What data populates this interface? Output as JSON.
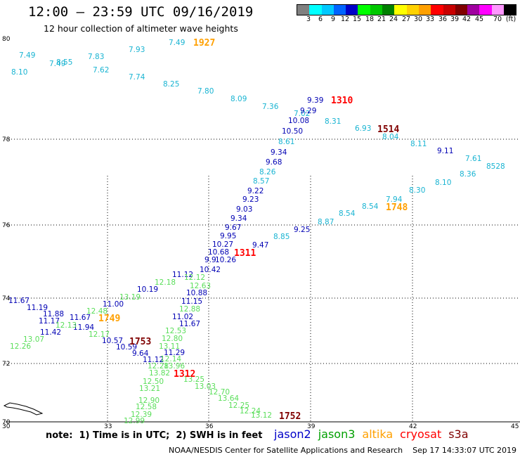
{
  "header": {
    "title": "12:00 – 23:59 UTC 09/16/2019",
    "subtitle": "12 hour collection of altimeter wave heights"
  },
  "legend": {
    "colors": [
      "#808080",
      "#00ffff",
      "#00c8ff",
      "#0064ff",
      "#0000c8",
      "#00ff00",
      "#00c800",
      "#008000",
      "#ffff00",
      "#ffd200",
      "#ffa000",
      "#ff0000",
      "#c80000",
      "#800000",
      "#a000a0",
      "#ff00ff",
      "#ff96ff",
      "#000000"
    ],
    "labels": [
      "3",
      "6",
      "9",
      "12",
      "15",
      "18",
      "21",
      "24",
      "27",
      "30",
      "33",
      "36",
      "39",
      "42",
      "45",
      "70"
    ],
    "unit": "(ft)"
  },
  "axes": {
    "lat_labels": [
      "80",
      "78",
      "76",
      "74",
      "72",
      "70"
    ],
    "lon_labels": [
      "30",
      "33",
      "36",
      "39",
      "42",
      "45"
    ]
  },
  "measurements": [
    {
      "v": "7.49",
      "s": "cyan"
    },
    {
      "v": "8.55",
      "s": "cyan"
    },
    {
      "v": "7.49",
      "s": "cyan"
    },
    {
      "v": "8.10",
      "s": "cyan"
    },
    {
      "v": "7.83",
      "s": "cyan"
    },
    {
      "v": "7.62",
      "s": "cyan"
    },
    {
      "v": "7.93",
      "s": "cyan"
    },
    {
      "v": "7.74",
      "s": "cyan"
    },
    {
      "v": "7.49",
      "s": "cyan"
    },
    {
      "v": "8.25",
      "s": "cyan"
    },
    {
      "v": "7.80",
      "s": "cyan"
    },
    {
      "v": "8.09",
      "s": "cyan"
    },
    {
      "v": "7.36",
      "s": "cyan"
    },
    {
      "v": "7.02",
      "s": "cyan"
    },
    {
      "v": "8.31",
      "s": "cyan"
    },
    {
      "v": "6.93",
      "s": "cyan"
    },
    {
      "v": "8.04",
      "s": "cyan"
    },
    {
      "v": "8.11",
      "s": "cyan"
    },
    {
      "v": "7.61",
      "s": "cyan"
    },
    {
      "v": "8.36",
      "s": "cyan"
    },
    {
      "v": "8.10",
      "s": "cyan"
    },
    {
      "v": "8.30",
      "s": "cyan"
    },
    {
      "v": "7.94",
      "s": "cyan"
    },
    {
      "v": "8.54",
      "s": "cyan"
    },
    {
      "v": "8.54",
      "s": "cyan"
    },
    {
      "v": "8.87",
      "s": "cyan"
    },
    {
      "v": "8.85",
      "s": "cyan"
    },
    {
      "v": "8.57",
      "s": "cyan"
    },
    {
      "v": "8.26",
      "s": "cyan"
    },
    {
      "v": "8.61",
      "s": "cyan"
    },
    {
      "v": "8528",
      "s": "cyan"
    },
    {
      "v": "9.39",
      "s": "blue"
    },
    {
      "v": "9.29",
      "s": "blue"
    },
    {
      "v": "10.08",
      "s": "blue"
    },
    {
      "v": "10.50",
      "s": "blue"
    },
    {
      "v": "9.34",
      "s": "blue"
    },
    {
      "v": "9.68",
      "s": "blue"
    },
    {
      "v": "9.22",
      "s": "blue"
    },
    {
      "v": "9.23",
      "s": "blue"
    },
    {
      "v": "9.03",
      "s": "blue"
    },
    {
      "v": "9.34",
      "s": "blue"
    },
    {
      "v": "9.67",
      "s": "blue"
    },
    {
      "v": "9.95",
      "s": "blue"
    },
    {
      "v": "10.27",
      "s": "blue"
    },
    {
      "v": "10.68",
      "s": "blue"
    },
    {
      "v": "9.9",
      "s": "blue"
    },
    {
      "v": "10.26",
      "s": "blue"
    },
    {
      "v": "9.47",
      "s": "blue"
    },
    {
      "v": "9.25",
      "s": "blue"
    },
    {
      "v": "9.11",
      "s": "blue"
    },
    {
      "v": "10.42",
      "s": "blue"
    },
    {
      "v": "11.12",
      "s": "blue"
    },
    {
      "v": "10.19",
      "s": "blue"
    },
    {
      "v": "10.88",
      "s": "blue"
    },
    {
      "v": "11.15",
      "s": "blue"
    },
    {
      "v": "11.02",
      "s": "blue"
    },
    {
      "v": "11.67",
      "s": "blue"
    },
    {
      "v": "11.67",
      "s": "blue"
    },
    {
      "v": "11.19",
      "s": "blue"
    },
    {
      "v": "11.88",
      "s": "blue"
    },
    {
      "v": "11.17",
      "s": "blue"
    },
    {
      "v": "11.67",
      "s": "blue"
    },
    {
      "v": "11.94",
      "s": "blue"
    },
    {
      "v": "11.42",
      "s": "blue"
    },
    {
      "v": "11.00",
      "s": "blue"
    },
    {
      "v": "10.57",
      "s": "blue"
    },
    {
      "v": "10.59",
      "s": "blue"
    },
    {
      "v": "9.64",
      "s": "blue"
    },
    {
      "v": "11.29",
      "s": "blue"
    },
    {
      "v": "11.12",
      "s": "blue"
    },
    {
      "v": "12.18",
      "s": "green"
    },
    {
      "v": "12.12",
      "s": "green"
    },
    {
      "v": "12.63",
      "s": "green"
    },
    {
      "v": "13.19",
      "s": "green"
    },
    {
      "v": "12.48",
      "s": "green"
    },
    {
      "v": "12.13",
      "s": "green"
    },
    {
      "v": "12.17",
      "s": "green"
    },
    {
      "v": "13.07",
      "s": "green"
    },
    {
      "v": "12.26",
      "s": "green"
    },
    {
      "v": "12.88",
      "s": "green"
    },
    {
      "v": "12.53",
      "s": "green"
    },
    {
      "v": "12.80",
      "s": "green"
    },
    {
      "v": "13.11",
      "s": "green"
    },
    {
      "v": "12.14",
      "s": "green"
    },
    {
      "v": "12.28",
      "s": "green"
    },
    {
      "v": "13.96",
      "s": "green"
    },
    {
      "v": "13.82",
      "s": "green"
    },
    {
      "v": "12.50",
      "s": "green"
    },
    {
      "v": "13.21",
      "s": "green"
    },
    {
      "v": "12.90",
      "s": "green"
    },
    {
      "v": "12.58",
      "s": "green"
    },
    {
      "v": "12.39",
      "s": "green"
    },
    {
      "v": "12.99",
      "s": "green"
    },
    {
      "v": "13.25",
      "s": "green"
    },
    {
      "v": "13.03",
      "s": "green"
    },
    {
      "v": "12.70",
      "s": "green"
    },
    {
      "v": "13.64",
      "s": "green"
    },
    {
      "v": "12.25",
      "s": "green"
    },
    {
      "v": "12.24",
      "s": "green"
    },
    {
      "v": "13.12",
      "s": "green"
    }
  ],
  "time_stamps": [
    {
      "v": "1927",
      "s": "orange"
    },
    {
      "v": "1310",
      "s": "red"
    },
    {
      "v": "1514",
      "s": "maroon"
    },
    {
      "v": "1748",
      "s": "orange"
    },
    {
      "v": "1311",
      "s": "red"
    },
    {
      "v": "1749",
      "s": "orange"
    },
    {
      "v": "1753",
      "s": "maroon"
    },
    {
      "v": "1312",
      "s": "red"
    },
    {
      "v": "1752",
      "s": "maroon"
    }
  ],
  "footer": {
    "note": "note:  1) Time is in UTC;  2) SWH is in feet",
    "satellites": [
      {
        "name": "jason2",
        "color": "#0000c8"
      },
      {
        "name": "jason3",
        "color": "#00a000"
      },
      {
        "name": "altika",
        "color": "#ffa000"
      },
      {
        "name": "cryosat",
        "color": "#ff0000"
      },
      {
        "name": "s3a",
        "color": "#800000"
      }
    ],
    "credit": "NOAA/NESDIS Center for Satellite Applications and Research    Sep 17 14:33:07 UTC 2019"
  },
  "track_colors": {
    "cyan": "#19b4d2",
    "blue": "#0000b4",
    "green": "#5ade5a",
    "orange": "#ffa000",
    "red": "#ff0000",
    "maroon": "#800000"
  }
}
